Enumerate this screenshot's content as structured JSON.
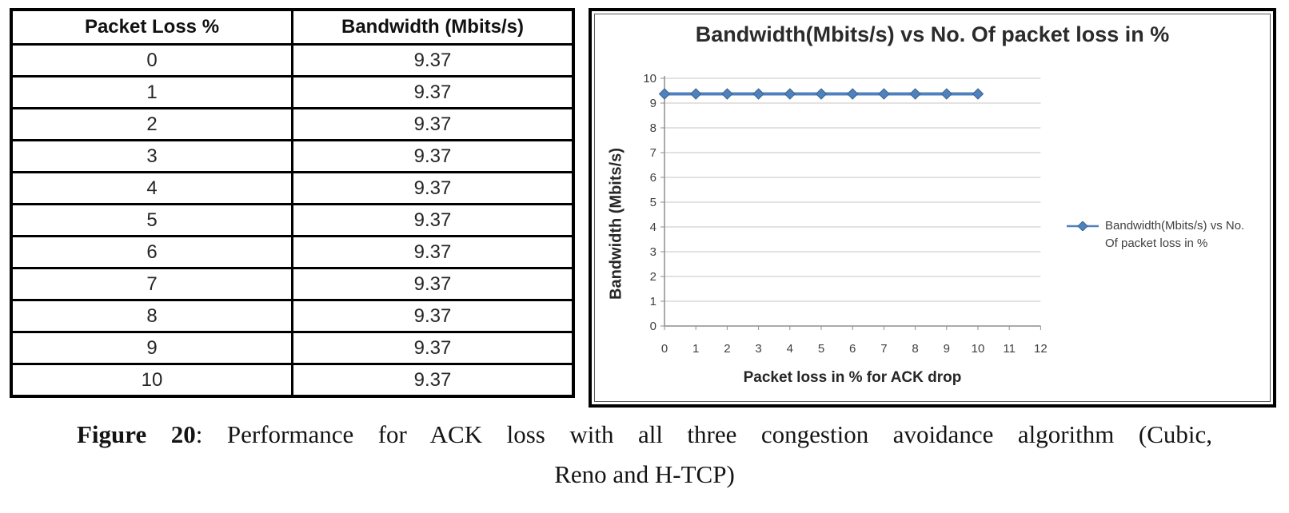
{
  "table": {
    "headers": [
      "Packet Loss %",
      "Bandwidth (Mbits/s)"
    ],
    "rows": [
      [
        "0",
        "9.37"
      ],
      [
        "1",
        "9.37"
      ],
      [
        "2",
        "9.37"
      ],
      [
        "3",
        "9.37"
      ],
      [
        "4",
        "9.37"
      ],
      [
        "5",
        "9.37"
      ],
      [
        "6",
        "9.37"
      ],
      [
        "7",
        "9.37"
      ],
      [
        "8",
        "9.37"
      ],
      [
        "9",
        "9.37"
      ],
      [
        "10",
        "9.37"
      ]
    ]
  },
  "chart": {
    "title": "Bandwidth(Mbits/s) vs No. Of packet loss in %",
    "xlabel": "Packet loss in % for ACK drop",
    "ylabel": "Bandwidth (Mbits/s)",
    "legend_label": "Bandwidth(Mbits/s) vs No. Of packet loss in %"
  },
  "chart_data": {
    "type": "line",
    "title": "Bandwidth(Mbits/s) vs No. Of packet loss in %",
    "xlabel": "Packet loss in % for ACK drop",
    "ylabel": "Bandwidth (Mbits/s)",
    "x": [
      0,
      1,
      2,
      3,
      4,
      5,
      6,
      7,
      8,
      9,
      10
    ],
    "y": [
      9.37,
      9.37,
      9.37,
      9.37,
      9.37,
      9.37,
      9.37,
      9.37,
      9.37,
      9.37,
      9.37
    ],
    "xlim": [
      0,
      12
    ],
    "ylim": [
      0,
      10
    ],
    "x_ticks": [
      0,
      1,
      2,
      3,
      4,
      5,
      6,
      7,
      8,
      9,
      10,
      11,
      12
    ],
    "y_ticks": [
      0,
      1,
      2,
      3,
      4,
      5,
      6,
      7,
      8,
      9,
      10
    ],
    "grid": true,
    "marker": "diamond",
    "legend": [
      "Bandwidth(Mbits/s) vs No. Of packet loss in %"
    ],
    "legend_position": "right"
  },
  "colors": {
    "series": "#4f81bd",
    "series_edge": "#3a6394",
    "grid": "#c6c6c6",
    "axis": "#8e8e8e",
    "tick_text": "#3f3f3f"
  },
  "caption": {
    "label": "Figure 20",
    "line1_rest": ": Performance for ACK loss with all three congestion avoidance algorithm (Cubic,",
    "line2": "Reno and H-TCP)"
  }
}
